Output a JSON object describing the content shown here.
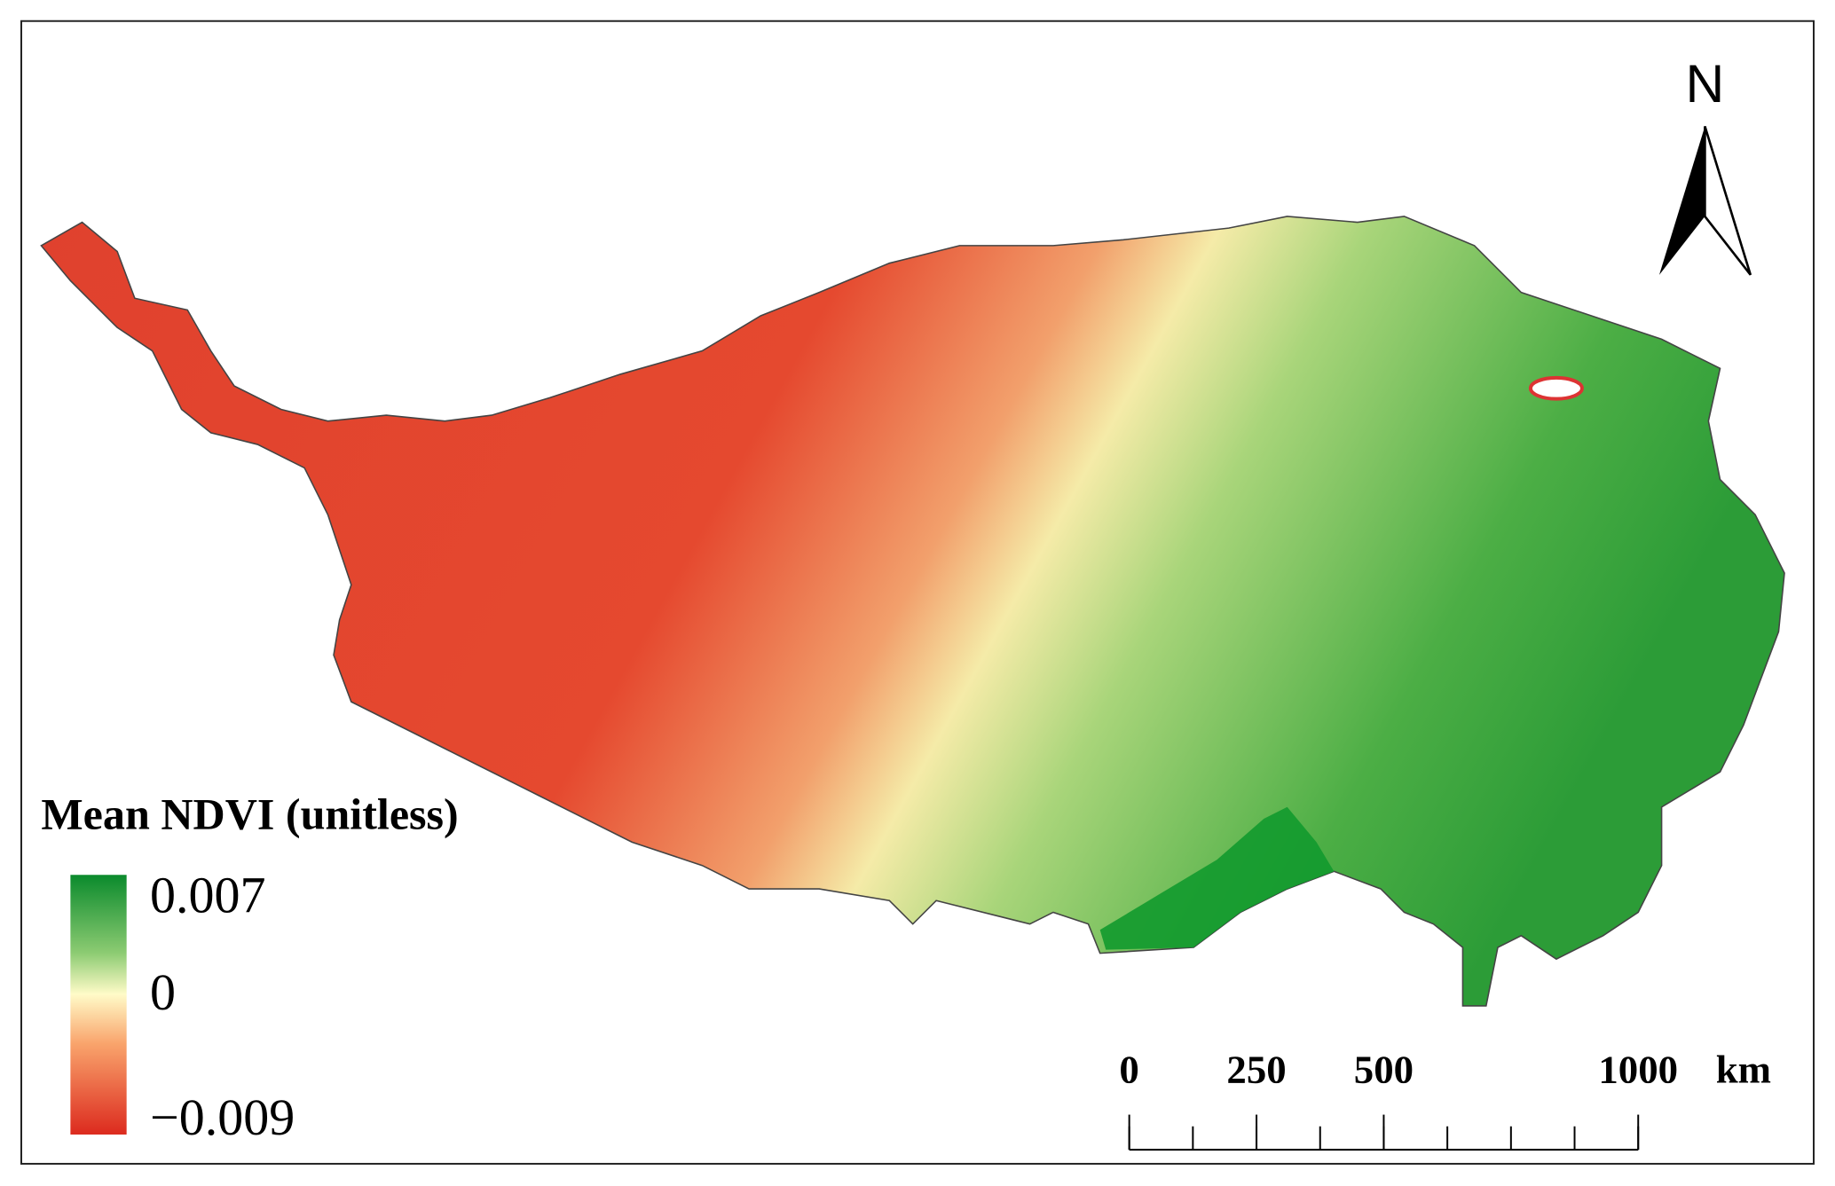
{
  "north": "N",
  "legend": {
    "title": "Mean NDVI (unitless)",
    "ticks": [
      {
        "value": 0.007,
        "label": "0.007"
      },
      0,
      {
        "value": -0.009,
        "label": "−0.009"
      }
    ]
  },
  "scale_bar": {
    "ticks": [
      0,
      250,
      500,
      1000
    ],
    "unit": "km"
  }
}
